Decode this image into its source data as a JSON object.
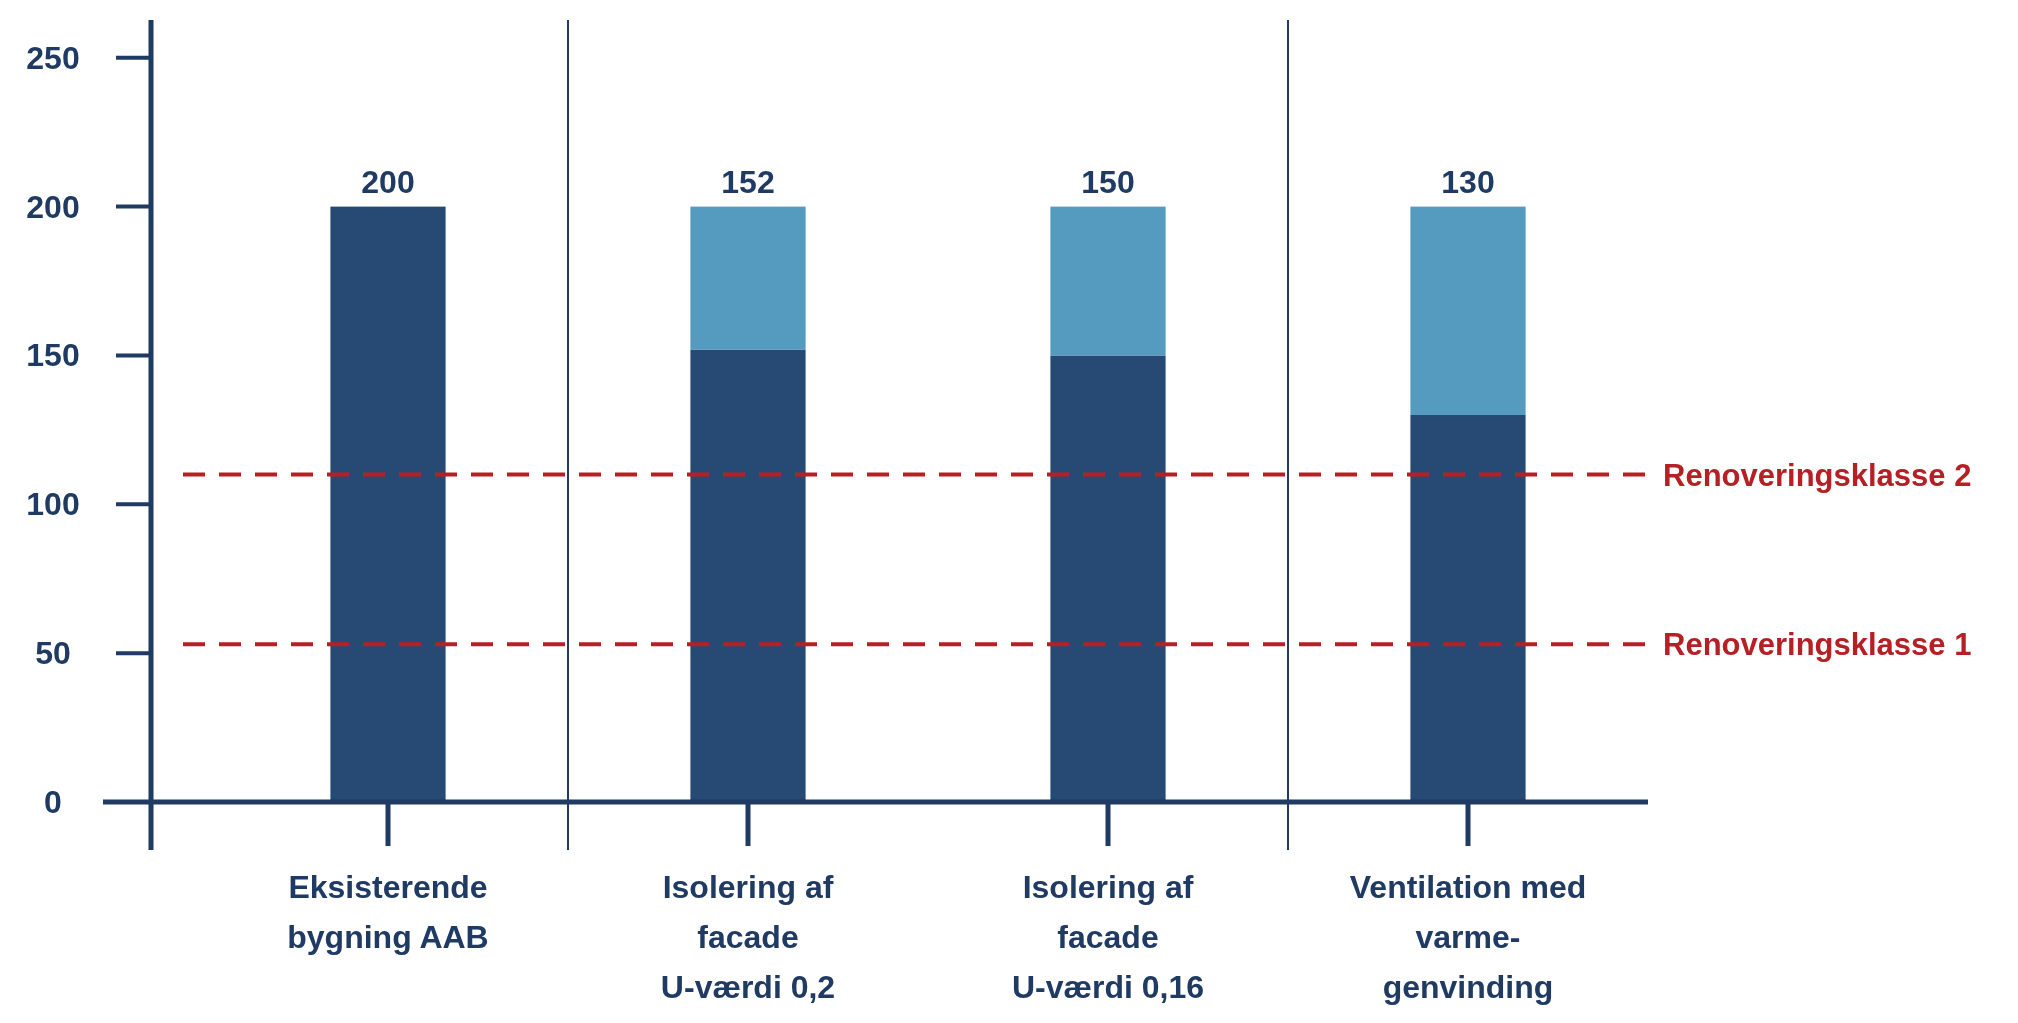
{
  "chart_data": {
    "type": "bar",
    "stacked": true,
    "categories": [
      "Eksisterende\nbygning AAB",
      "Isolering af\nfacade\nU-værdi 0,2",
      "Isolering af\nfacade\nU-værdi 0,16",
      "Ventilation med\nvarme-\ngenvinding"
    ],
    "series": [
      {
        "color": "#264a73",
        "values": [
          200,
          152,
          150,
          130
        ]
      },
      {
        "color": "#559bbf",
        "values": [
          0,
          48,
          50,
          70
        ]
      }
    ],
    "ylim": [
      0,
      260
    ],
    "yticks": [
      0,
      50,
      100,
      150,
      200,
      250
    ],
    "grid": false,
    "annotations": [
      {
        "text": "200",
        "x": "Eksisterende\nbygning AAB",
        "y": 200
      },
      {
        "text": "152",
        "x": "Isolering af\nfacade\nU-værdi 0,2",
        "y": 200
      },
      {
        "text": "150",
        "x": "Isolering af\nfacade\nU-værdi 0,16",
        "y": 200
      },
      {
        "text": "130",
        "x": "Ventilation med\nvarme-\ngenvinding",
        "y": 200
      }
    ],
    "ref_lines": [
      {
        "axis": "y",
        "value": 110,
        "label": "Renoveringsklasse 2",
        "color": "#b52025",
        "line_style": "dashed"
      },
      {
        "axis": "y",
        "value": 53,
        "label": "Renoveringsklasse 1",
        "color": "#b52025",
        "line_style": "dashed"
      }
    ]
  }
}
